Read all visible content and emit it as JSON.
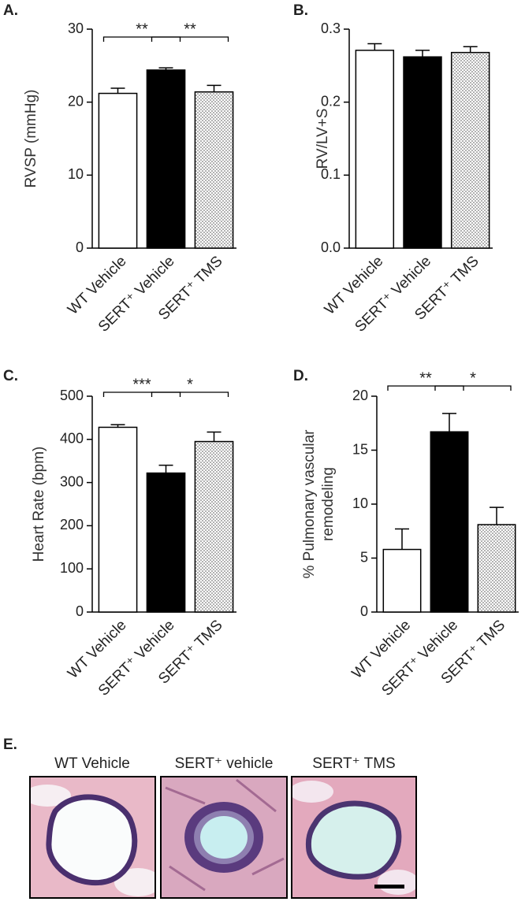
{
  "chart_data": [
    {
      "type": "bar",
      "panel": "A.",
      "ylabel": [
        "RVSP (mmHg)"
      ],
      "categories": [
        "WT Vehicle",
        "SERT⁺ Vehicle",
        "SERT⁺ TMS"
      ],
      "values": [
        21.2,
        24.4,
        21.4
      ],
      "errors": [
        0.7,
        0.3,
        0.9
      ],
      "fills": [
        "#ffffff",
        "#000000",
        "dots"
      ],
      "ylim": [
        0,
        30
      ],
      "yticks": [
        0,
        10,
        20,
        30
      ],
      "annotations": [
        "**",
        "**"
      ]
    },
    {
      "type": "bar",
      "panel": "B.",
      "ylabel": [
        "RV/LV+S"
      ],
      "categories": [
        "WT Vehicle",
        "SERT⁺ Vehicle",
        "SERT⁺ TMS"
      ],
      "values": [
        0.271,
        0.262,
        0.268
      ],
      "errors": [
        0.009,
        0.009,
        0.008
      ],
      "fills": [
        "#ffffff",
        "#000000",
        "dots"
      ],
      "ylim": [
        0,
        0.3
      ],
      "yticks": [
        {
          "value": 0,
          "label": "0.0"
        },
        0.1,
        0.2,
        0.3
      ],
      "annotations": []
    },
    {
      "type": "bar",
      "panel": "C.",
      "ylabel": [
        "Heart Rate (bpm)"
      ],
      "categories": [
        "WT Vehicle",
        "SERT⁺ Vehicle",
        "SERT⁺ TMS"
      ],
      "values": [
        428,
        322,
        395
      ],
      "errors": [
        6,
        18,
        22
      ],
      "fills": [
        "#ffffff",
        "#000000",
        "dots"
      ],
      "ylim": [
        0,
        500
      ],
      "yticks": [
        0,
        100,
        200,
        300,
        400,
        500
      ],
      "annotations": [
        "***",
        "*"
      ]
    },
    {
      "type": "bar",
      "panel": "D.",
      "ylabel": [
        "% Pulmonary vascular",
        "remodeling"
      ],
      "categories": [
        "WT Vehicle",
        "SERT⁺ Vehicle",
        "SERT⁺ TMS"
      ],
      "values": [
        5.8,
        16.7,
        8.1
      ],
      "errors": [
        1.9,
        1.7,
        1.6
      ],
      "fills": [
        "#ffffff",
        "#000000",
        "dots"
      ],
      "ylim": [
        0,
        20
      ],
      "yticks": [
        0,
        5,
        10,
        15,
        20
      ],
      "annotations": [
        "**",
        "*"
      ]
    }
  ],
  "panel_e": {
    "label": "E.",
    "titles": [
      "WT Vehicle",
      "SERT⁺ vehicle",
      "SERT⁺ TMS"
    ]
  }
}
